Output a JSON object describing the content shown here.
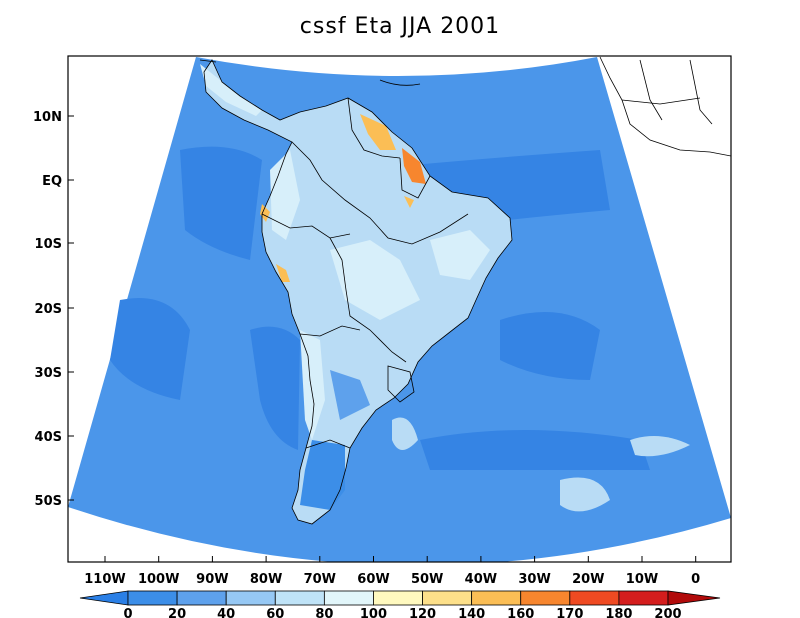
{
  "title": "cssf Eta JJA 2001",
  "lat_labels": [
    "10N",
    "EQ",
    "10S",
    "20S",
    "30S",
    "40S",
    "50S"
  ],
  "lon_labels": [
    "110W",
    "100W",
    "90W",
    "80W",
    "70W",
    "60W",
    "50W",
    "40W",
    "30W",
    "20W",
    "10W",
    "0"
  ],
  "colorbar": {
    "levels": [
      "0",
      "20",
      "40",
      "60",
      "80",
      "100",
      "120",
      "140",
      "160",
      "170",
      "180",
      "200"
    ],
    "colors": [
      "#2a7fe6",
      "#3c8ee8",
      "#5ea1ec",
      "#96c8f4",
      "#bfe3f7",
      "#e2f6fa",
      "#fff9bf",
      "#fde08a",
      "#fbbe55",
      "#f7862e",
      "#ef4a22",
      "#d41d1d",
      "#b10a0a"
    ]
  },
  "field_colors": {
    "ocean": "#4b96ea",
    "deep_ocean": "#3584e4",
    "land_light": "#b9dcf5",
    "land_pale": "#d7effa",
    "hot": "#fbbe55",
    "hotter": "#f7862e"
  }
}
